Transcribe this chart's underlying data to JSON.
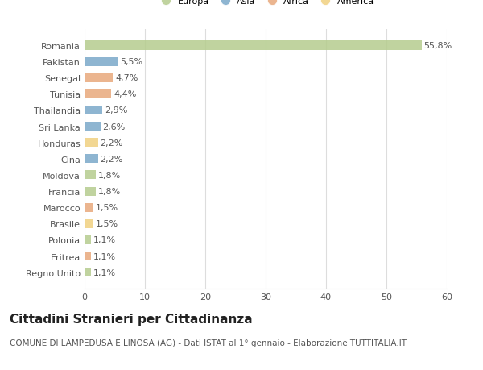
{
  "categories": [
    "Romania",
    "Pakistan",
    "Senegal",
    "Tunisia",
    "Thailandia",
    "Sri Lanka",
    "Honduras",
    "Cina",
    "Moldova",
    "Francia",
    "Marocco",
    "Brasile",
    "Polonia",
    "Eritrea",
    "Regno Unito"
  ],
  "values": [
    55.8,
    5.5,
    4.7,
    4.4,
    2.9,
    2.6,
    2.2,
    2.2,
    1.8,
    1.8,
    1.5,
    1.5,
    1.1,
    1.1,
    1.1
  ],
  "labels": [
    "55,8%",
    "5,5%",
    "4,7%",
    "4,4%",
    "2,9%",
    "2,6%",
    "2,2%",
    "2,2%",
    "1,8%",
    "1,8%",
    "1,5%",
    "1,5%",
    "1,1%",
    "1,1%",
    "1,1%"
  ],
  "continents": [
    "Europa",
    "Asia",
    "Africa",
    "Africa",
    "Asia",
    "Asia",
    "America",
    "Asia",
    "Europa",
    "Europa",
    "Africa",
    "America",
    "Europa",
    "Africa",
    "Europa"
  ],
  "continent_colors": {
    "Europa": "#b5cc8e",
    "Asia": "#7aa8c9",
    "Africa": "#e8a87c",
    "America": "#f0d080"
  },
  "legend_order": [
    "Europa",
    "Asia",
    "Africa",
    "America"
  ],
  "title": "Cittadini Stranieri per Cittadinanza",
  "subtitle": "COMUNE DI LAMPEDUSA E LINOSA (AG) - Dati ISTAT al 1° gennaio - Elaborazione TUTTITALIA.IT",
  "xlim": [
    0,
    60
  ],
  "xticks": [
    0,
    10,
    20,
    30,
    40,
    50,
    60
  ],
  "background_color": "#ffffff",
  "grid_color": "#dddddd",
  "label_fontsize": 8,
  "tick_fontsize": 8,
  "title_fontsize": 11,
  "subtitle_fontsize": 7.5
}
